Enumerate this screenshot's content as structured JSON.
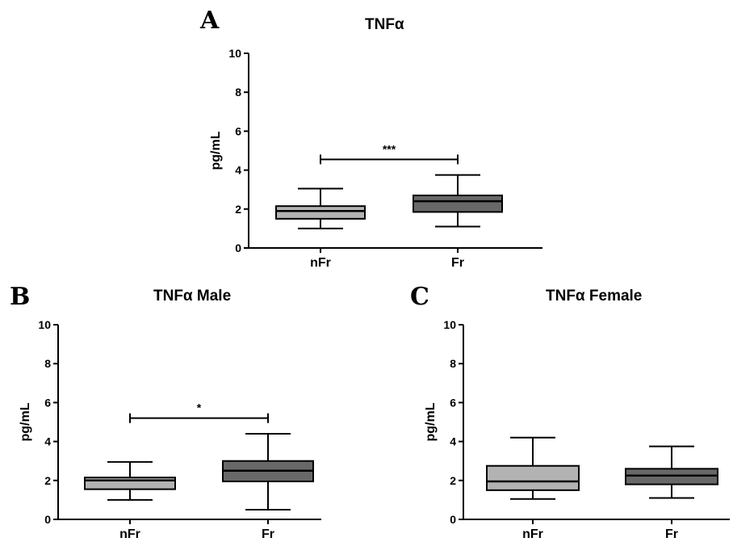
{
  "chart_data": [
    {
      "panel": "A",
      "type": "box",
      "title": "TNFα",
      "ylabel": "pg/mL",
      "ylim": [
        0,
        10
      ],
      "yticks": [
        0,
        2,
        4,
        6,
        8,
        10
      ],
      "categories": [
        "nFr",
        "Fr"
      ],
      "boxes": [
        {
          "category": "nFr",
          "min": 1.0,
          "q1": 1.5,
          "median": 1.9,
          "q3": 2.15,
          "max": 3.05,
          "color": "#b3b3b3"
        },
        {
          "category": "Fr",
          "min": 1.1,
          "q1": 1.85,
          "median": 2.4,
          "q3": 2.7,
          "max": 3.75,
          "color": "#686868"
        }
      ],
      "significance": {
        "from": "nFr",
        "to": "Fr",
        "y": 4.55,
        "label": "***"
      }
    },
    {
      "panel": "B",
      "type": "box",
      "title": "TNFα Male",
      "ylabel": "pg/mL",
      "ylim": [
        0,
        10
      ],
      "yticks": [
        0,
        2,
        4,
        6,
        8,
        10
      ],
      "categories": [
        "nFr",
        "Fr"
      ],
      "boxes": [
        {
          "category": "nFr",
          "min": 1.0,
          "q1": 1.55,
          "median": 2.0,
          "q3": 2.15,
          "max": 2.95,
          "color": "#b3b3b3"
        },
        {
          "category": "Fr",
          "min": 0.5,
          "q1": 1.95,
          "median": 2.5,
          "q3": 3.0,
          "max": 4.4,
          "color": "#686868"
        }
      ],
      "significance": {
        "from": "nFr",
        "to": "Fr",
        "y": 5.2,
        "label": "*"
      }
    },
    {
      "panel": "C",
      "type": "box",
      "title": "TNFα Female",
      "ylabel": "pg/mL",
      "ylim": [
        0,
        10
      ],
      "yticks": [
        0,
        2,
        4,
        6,
        8,
        10
      ],
      "categories": [
        "nFr",
        "Fr"
      ],
      "boxes": [
        {
          "category": "nFr",
          "min": 1.05,
          "q1": 1.5,
          "median": 1.95,
          "q3": 2.75,
          "max": 4.2,
          "color": "#b3b3b3"
        },
        {
          "category": "Fr",
          "min": 1.1,
          "q1": 1.8,
          "median": 2.25,
          "q3": 2.6,
          "max": 3.75,
          "color": "#686868"
        }
      ]
    }
  ]
}
